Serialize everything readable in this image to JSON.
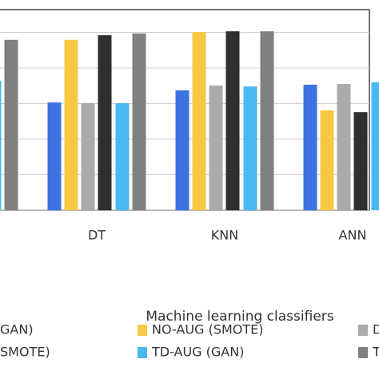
{
  "chart_data": {
    "type": "bar",
    "x_label": "Machine learning classifiers",
    "categories": [
      null,
      "DT",
      "KNN",
      "ANN"
    ],
    "series": [
      {
        "name": "GAN)",
        "color": "#3b73e0",
        "values": [
          null,
          3.03,
          3.37,
          3.53
        ]
      },
      {
        "name": "NO-AUG (SMOTE)",
        "color": "#f9c843",
        "values": [
          null,
          4.79,
          5.01,
          2.81
        ]
      },
      {
        "name": "D",
        "color": "#a9aaa9",
        "values": [
          null,
          3.01,
          3.51,
          3.55
        ]
      },
      {
        "name": "SMOTE)",
        "color": "#2f2f2f",
        "values": [
          null,
          4.92,
          5.03,
          2.76
        ]
      },
      {
        "name": "TD-AUG (GAN)",
        "color": "#4ab8f0",
        "values": [
          3.64,
          3.01,
          3.48,
          3.6
        ]
      },
      {
        "name": "TI",
        "color": "#7f8180",
        "values": [
          4.79,
          4.97,
          5.03,
          null
        ]
      }
    ],
    "ylim": [
      0,
      5.64
    ],
    "yticks": [
      0,
      1,
      2,
      3,
      4,
      5
    ],
    "grid": true
  }
}
